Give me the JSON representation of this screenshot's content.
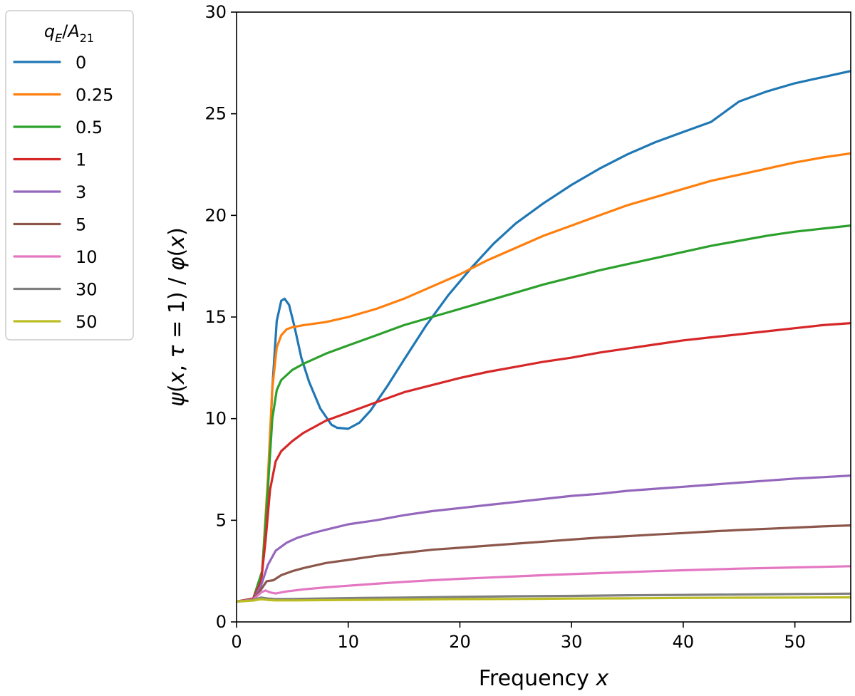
{
  "chart_data": {
    "type": "line",
    "title": "",
    "xlabel": "Frequency x",
    "ylabel": "ψ(x, τ = 1) / φ(x)",
    "xlim": [
      0,
      55
    ],
    "ylim": [
      0,
      30
    ],
    "x_ticks": [
      0,
      10,
      20,
      30,
      40,
      50
    ],
    "y_ticks": [
      0,
      5,
      10,
      15,
      20,
      25,
      30
    ],
    "grid": false,
    "legend": {
      "title": "qE/A21",
      "placement": "outside-left-top"
    },
    "series": [
      {
        "name": "0",
        "color": "#1f77b4",
        "points": [
          [
            0,
            1.0
          ],
          [
            1.5,
            1.15
          ],
          [
            2.3,
            2.5
          ],
          [
            2.8,
            6.5
          ],
          [
            3.2,
            11.5
          ],
          [
            3.6,
            14.8
          ],
          [
            4.0,
            15.8
          ],
          [
            4.3,
            15.9
          ],
          [
            4.7,
            15.6
          ],
          [
            5.2,
            14.5
          ],
          [
            5.8,
            13.0
          ],
          [
            6.5,
            11.8
          ],
          [
            7.5,
            10.5
          ],
          [
            8.5,
            9.7
          ],
          [
            9.0,
            9.55
          ],
          [
            10.0,
            9.5
          ],
          [
            11.0,
            9.8
          ],
          [
            12.0,
            10.4
          ],
          [
            13.5,
            11.6
          ],
          [
            15.0,
            12.9
          ],
          [
            17.0,
            14.6
          ],
          [
            19.0,
            16.1
          ],
          [
            21.0,
            17.4
          ],
          [
            23.0,
            18.6
          ],
          [
            25.0,
            19.6
          ],
          [
            27.5,
            20.6
          ],
          [
            30.0,
            21.5
          ],
          [
            32.5,
            22.3
          ],
          [
            35.0,
            23.0
          ],
          [
            37.5,
            23.6
          ],
          [
            40.0,
            24.1
          ],
          [
            42.5,
            24.6
          ],
          [
            45.0,
            25.6
          ],
          [
            47.5,
            26.1
          ],
          [
            50.0,
            26.5
          ],
          [
            52.5,
            26.8
          ],
          [
            55.0,
            27.1
          ]
        ]
      },
      {
        "name": "0.25",
        "color": "#ff7f0e",
        "points": [
          [
            0,
            1.0
          ],
          [
            1.5,
            1.15
          ],
          [
            2.3,
            2.5
          ],
          [
            2.8,
            7.0
          ],
          [
            3.2,
            11.5
          ],
          [
            3.6,
            13.5
          ],
          [
            4.0,
            14.1
          ],
          [
            4.5,
            14.4
          ],
          [
            5.0,
            14.5
          ],
          [
            6.0,
            14.6
          ],
          [
            8.0,
            14.75
          ],
          [
            10.0,
            15.0
          ],
          [
            12.5,
            15.4
          ],
          [
            15.0,
            15.9
          ],
          [
            17.5,
            16.5
          ],
          [
            20.0,
            17.1
          ],
          [
            22.5,
            17.8
          ],
          [
            25.0,
            18.4
          ],
          [
            27.5,
            19.0
          ],
          [
            30.0,
            19.5
          ],
          [
            32.5,
            20.0
          ],
          [
            35.0,
            20.5
          ],
          [
            37.5,
            20.9
          ],
          [
            40.0,
            21.3
          ],
          [
            42.5,
            21.7
          ],
          [
            45.0,
            22.0
          ],
          [
            47.5,
            22.3
          ],
          [
            50.0,
            22.6
          ],
          [
            52.5,
            22.85
          ],
          [
            55.0,
            23.05
          ]
        ]
      },
      {
        "name": "0.5",
        "color": "#2ca02c",
        "points": [
          [
            0,
            1.0
          ],
          [
            1.5,
            1.15
          ],
          [
            2.3,
            2.5
          ],
          [
            2.8,
            6.5
          ],
          [
            3.2,
            10.0
          ],
          [
            3.6,
            11.4
          ],
          [
            4.0,
            11.9
          ],
          [
            5.0,
            12.4
          ],
          [
            6.0,
            12.7
          ],
          [
            8.0,
            13.2
          ],
          [
            10.0,
            13.6
          ],
          [
            12.5,
            14.1
          ],
          [
            15.0,
            14.6
          ],
          [
            17.5,
            15.0
          ],
          [
            20.0,
            15.4
          ],
          [
            22.5,
            15.8
          ],
          [
            25.0,
            16.2
          ],
          [
            27.5,
            16.6
          ],
          [
            30.0,
            16.95
          ],
          [
            32.5,
            17.3
          ],
          [
            35.0,
            17.6
          ],
          [
            37.5,
            17.9
          ],
          [
            40.0,
            18.2
          ],
          [
            42.5,
            18.5
          ],
          [
            45.0,
            18.75
          ],
          [
            47.5,
            19.0
          ],
          [
            50.0,
            19.2
          ],
          [
            52.5,
            19.35
          ],
          [
            55.0,
            19.5
          ]
        ]
      },
      {
        "name": "1",
        "color": "#d62728",
        "points": [
          [
            0,
            1.0
          ],
          [
            1.5,
            1.15
          ],
          [
            2.2,
            2.0
          ],
          [
            2.6,
            4.0
          ],
          [
            3.0,
            6.5
          ],
          [
            3.5,
            7.9
          ],
          [
            4.0,
            8.4
          ],
          [
            5.0,
            8.9
          ],
          [
            6.0,
            9.3
          ],
          [
            8.0,
            9.9
          ],
          [
            10.0,
            10.3
          ],
          [
            12.5,
            10.8
          ],
          [
            15.0,
            11.3
          ],
          [
            17.5,
            11.65
          ],
          [
            20.0,
            12.0
          ],
          [
            22.5,
            12.3
          ],
          [
            25.0,
            12.55
          ],
          [
            27.5,
            12.8
          ],
          [
            30.0,
            13.0
          ],
          [
            32.5,
            13.25
          ],
          [
            35.0,
            13.45
          ],
          [
            37.5,
            13.65
          ],
          [
            40.0,
            13.85
          ],
          [
            42.5,
            14.0
          ],
          [
            45.0,
            14.15
          ],
          [
            47.5,
            14.3
          ],
          [
            50.0,
            14.45
          ],
          [
            52.5,
            14.6
          ],
          [
            55.0,
            14.7
          ]
        ]
      },
      {
        "name": "3",
        "color": "#9467bd",
        "points": [
          [
            0,
            1.0
          ],
          [
            1.5,
            1.1
          ],
          [
            2.2,
            1.8
          ],
          [
            2.8,
            2.8
          ],
          [
            3.5,
            3.5
          ],
          [
            4.5,
            3.9
          ],
          [
            5.5,
            4.15
          ],
          [
            7.0,
            4.4
          ],
          [
            8.5,
            4.6
          ],
          [
            10.0,
            4.8
          ],
          [
            12.5,
            5.0
          ],
          [
            15.0,
            5.25
          ],
          [
            17.5,
            5.45
          ],
          [
            20.0,
            5.6
          ],
          [
            22.5,
            5.75
          ],
          [
            25.0,
            5.9
          ],
          [
            27.5,
            6.05
          ],
          [
            30.0,
            6.2
          ],
          [
            32.5,
            6.3
          ],
          [
            35.0,
            6.45
          ],
          [
            37.5,
            6.55
          ],
          [
            40.0,
            6.65
          ],
          [
            42.5,
            6.75
          ],
          [
            45.0,
            6.85
          ],
          [
            47.5,
            6.95
          ],
          [
            50.0,
            7.05
          ],
          [
            52.5,
            7.12
          ],
          [
            55.0,
            7.2
          ]
        ]
      },
      {
        "name": "5",
        "color": "#8c564b",
        "points": [
          [
            0,
            1.0
          ],
          [
            1.5,
            1.1
          ],
          [
            2.2,
            1.6
          ],
          [
            2.7,
            2.0
          ],
          [
            3.3,
            2.05
          ],
          [
            4.0,
            2.3
          ],
          [
            5.0,
            2.5
          ],
          [
            6.0,
            2.65
          ],
          [
            8.0,
            2.9
          ],
          [
            10.0,
            3.05
          ],
          [
            12.5,
            3.25
          ],
          [
            15.0,
            3.4
          ],
          [
            17.5,
            3.55
          ],
          [
            20.0,
            3.65
          ],
          [
            22.5,
            3.75
          ],
          [
            25.0,
            3.85
          ],
          [
            27.5,
            3.95
          ],
          [
            30.0,
            4.05
          ],
          [
            32.5,
            4.15
          ],
          [
            35.0,
            4.22
          ],
          [
            37.5,
            4.3
          ],
          [
            40.0,
            4.37
          ],
          [
            42.5,
            4.45
          ],
          [
            45.0,
            4.52
          ],
          [
            47.5,
            4.58
          ],
          [
            50.0,
            4.64
          ],
          [
            52.5,
            4.7
          ],
          [
            55.0,
            4.75
          ]
        ]
      },
      {
        "name": "10",
        "color": "#e377c2",
        "points": [
          [
            0,
            1.0
          ],
          [
            1.5,
            1.1
          ],
          [
            2.2,
            1.45
          ],
          [
            2.6,
            1.55
          ],
          [
            3.0,
            1.45
          ],
          [
            3.5,
            1.4
          ],
          [
            4.5,
            1.5
          ],
          [
            6.0,
            1.6
          ],
          [
            8.0,
            1.7
          ],
          [
            10.0,
            1.78
          ],
          [
            12.5,
            1.88
          ],
          [
            15.0,
            1.97
          ],
          [
            17.5,
            2.05
          ],
          [
            20.0,
            2.12
          ],
          [
            22.5,
            2.18
          ],
          [
            25.0,
            2.24
          ],
          [
            27.5,
            2.3
          ],
          [
            30.0,
            2.35
          ],
          [
            32.5,
            2.4
          ],
          [
            35.0,
            2.45
          ],
          [
            37.5,
            2.5
          ],
          [
            40.0,
            2.54
          ],
          [
            42.5,
            2.58
          ],
          [
            45.0,
            2.62
          ],
          [
            47.5,
            2.65
          ],
          [
            50.0,
            2.68
          ],
          [
            52.5,
            2.71
          ],
          [
            55.0,
            2.74
          ]
        ]
      },
      {
        "name": "30",
        "color": "#7f7f7f",
        "points": [
          [
            0,
            1.0
          ],
          [
            1.5,
            1.08
          ],
          [
            2.2,
            1.2
          ],
          [
            2.8,
            1.15
          ],
          [
            3.5,
            1.12
          ],
          [
            5.0,
            1.13
          ],
          [
            10.0,
            1.17
          ],
          [
            15.0,
            1.2
          ],
          [
            20.0,
            1.23
          ],
          [
            25.0,
            1.26
          ],
          [
            30.0,
            1.28
          ],
          [
            35.0,
            1.31
          ],
          [
            40.0,
            1.33
          ],
          [
            45.0,
            1.35
          ],
          [
            50.0,
            1.37
          ],
          [
            55.0,
            1.39
          ]
        ]
      },
      {
        "name": "50",
        "color": "#bcbd22",
        "points": [
          [
            0,
            1.0
          ],
          [
            1.5,
            1.05
          ],
          [
            2.2,
            1.12
          ],
          [
            2.8,
            1.08
          ],
          [
            3.5,
            1.06
          ],
          [
            5.0,
            1.06
          ],
          [
            10.0,
            1.08
          ],
          [
            15.0,
            1.1
          ],
          [
            20.0,
            1.12
          ],
          [
            25.0,
            1.13
          ],
          [
            30.0,
            1.15
          ],
          [
            35.0,
            1.16
          ],
          [
            40.0,
            1.18
          ],
          [
            45.0,
            1.19
          ],
          [
            50.0,
            1.2
          ],
          [
            55.0,
            1.21
          ]
        ]
      }
    ]
  }
}
